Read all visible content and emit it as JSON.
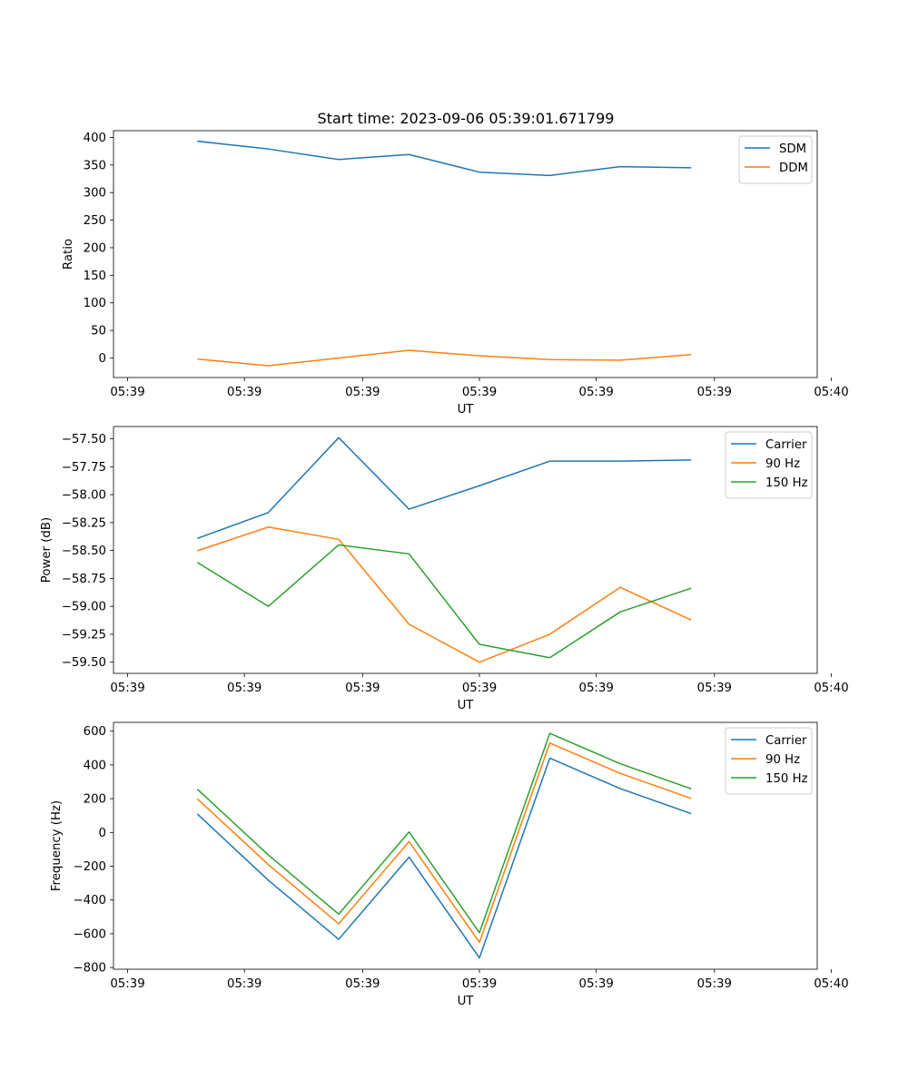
{
  "figure": {
    "title": "Start time: 2023-09-06 05:39:01.671799"
  },
  "colors": {
    "blue": "#1f77b4",
    "orange": "#ff7f0e",
    "green": "#2ca02c"
  },
  "chart_data": [
    {
      "type": "line",
      "title": "Start time: 2023-09-06 05:39:01.671799",
      "xlabel": "UT",
      "ylabel": "Ratio",
      "x": [
        0.5,
        1.0,
        1.5,
        2.0,
        2.5,
        3.0,
        3.5,
        4.0
      ],
      "xlim": [
        -0.1,
        4.9
      ],
      "xticks": [
        0,
        1,
        2,
        3,
        4,
        5,
        6
      ],
      "xtick_values": [
        0.0,
        0.83,
        1.67,
        2.5,
        3.33,
        4.17,
        5.0
      ],
      "xtick_labels": [
        "05:39",
        "05:39",
        "05:39",
        "05:39",
        "05:39",
        "05:39",
        "05:40"
      ],
      "ylim": [
        -35.4,
        412.2
      ],
      "yticks": [
        0,
        50,
        100,
        150,
        200,
        250,
        300,
        350,
        400
      ],
      "ytick_labels": [
        "0",
        "50",
        "100",
        "150",
        "200",
        "250",
        "300",
        "350",
        "400"
      ],
      "legend": "top-right",
      "series": [
        {
          "name": "SDM",
          "color": "#1f77b4",
          "values": [
            393,
            379,
            360,
            369,
            337,
            331,
            347,
            345
          ]
        },
        {
          "name": "DDM",
          "color": "#ff7f0e",
          "values": [
            -2,
            -14,
            0,
            14,
            4,
            -3,
            -4,
            6
          ]
        }
      ]
    },
    {
      "type": "line",
      "title": "",
      "xlabel": "UT",
      "ylabel": "Power (dB)",
      "x": [
        0.5,
        1.0,
        1.5,
        2.0,
        2.5,
        3.0,
        3.5,
        4.0
      ],
      "xlim": [
        -0.1,
        4.9
      ],
      "xtick_values": [
        0.0,
        0.83,
        1.67,
        2.5,
        3.33,
        4.17,
        5.0
      ],
      "xtick_labels": [
        "05:39",
        "05:39",
        "05:39",
        "05:39",
        "05:39",
        "05:39",
        "05:40"
      ],
      "ylim": [
        -59.6,
        -57.39
      ],
      "yticks": [
        -59.5,
        -59.25,
        -59.0,
        -58.75,
        -58.5,
        -58.25,
        -58.0,
        -57.75,
        -57.5
      ],
      "ytick_labels": [
        "−59.50",
        "−59.25",
        "−59.00",
        "−58.75",
        "−58.50",
        "−58.25",
        "−58.00",
        "−57.75",
        "−57.50"
      ],
      "legend": "top-right",
      "series": [
        {
          "name": "Carrier",
          "color": "#1f77b4",
          "values": [
            -58.39,
            -58.16,
            -57.49,
            -58.13,
            -57.92,
            -57.7,
            -57.7,
            -57.69
          ]
        },
        {
          "name": "90 Hz",
          "color": "#ff7f0e",
          "values": [
            -58.5,
            -58.29,
            -58.4,
            -59.16,
            -59.5,
            -59.25,
            -58.83,
            -59.12
          ]
        },
        {
          "name": "150 Hz",
          "color": "#2ca02c",
          "values": [
            -58.61,
            -59.0,
            -58.45,
            -58.53,
            -59.34,
            -59.46,
            -59.05,
            -58.84
          ]
        }
      ]
    },
    {
      "type": "line",
      "title": "",
      "xlabel": "UT",
      "ylabel": "Frequency (Hz)",
      "x": [
        0.5,
        1.0,
        1.5,
        2.0,
        2.5,
        3.0,
        3.5,
        4.0
      ],
      "xlim": [
        -0.1,
        4.9
      ],
      "xtick_values": [
        0.0,
        0.83,
        1.67,
        2.5,
        3.33,
        4.17,
        5.0
      ],
      "xtick_labels": [
        "05:39",
        "05:39",
        "05:39",
        "05:39",
        "05:39",
        "05:39",
        "05:40"
      ],
      "ylim": [
        -810,
        652
      ],
      "yticks": [
        -800,
        -600,
        -400,
        -200,
        0,
        200,
        400,
        600
      ],
      "ytick_labels": [
        "−800",
        "−600",
        "−400",
        "−200",
        "0",
        "200",
        "400",
        "600"
      ],
      "legend": "top-right",
      "series": [
        {
          "name": "Carrier",
          "color": "#1f77b4",
          "values": [
            106,
            -283,
            -633,
            -146,
            -743,
            440,
            260,
            113
          ]
        },
        {
          "name": "90 Hz",
          "color": "#ff7f0e",
          "values": [
            196,
            -190,
            -541,
            -54,
            -651,
            530,
            350,
            203
          ]
        },
        {
          "name": "150 Hz",
          "color": "#2ca02c",
          "values": [
            253,
            -133,
            -484,
            3,
            -594,
            587,
            407,
            260
          ]
        }
      ]
    }
  ]
}
